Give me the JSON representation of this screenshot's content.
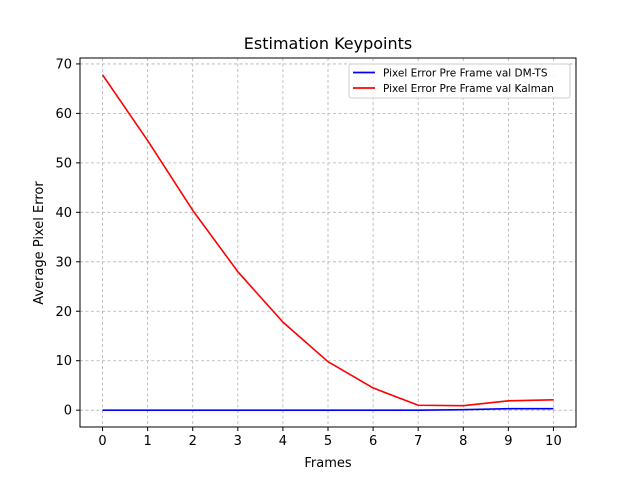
{
  "chart_data": {
    "type": "line",
    "title": "Estimation Keypoints",
    "xlabel": "Frames",
    "ylabel": "Average Pixel Error",
    "x": [
      0,
      1,
      2,
      3,
      4,
      5,
      6,
      7,
      8,
      9,
      10
    ],
    "xlim": [
      -0.5,
      10.5
    ],
    "ylim": [
      -3.4,
      71.2
    ],
    "xticks": [
      0,
      1,
      2,
      3,
      4,
      5,
      6,
      7,
      8,
      9,
      10
    ],
    "yticks": [
      0,
      10,
      20,
      30,
      40,
      50,
      60,
      70
    ],
    "grid": true,
    "legend_position": "top-right",
    "series": [
      {
        "name": "Pixel Error Pre Frame val DM-TS",
        "color": "#0000ff",
        "values": [
          0,
          0,
          0,
          0,
          0,
          0,
          0,
          0,
          0.1,
          0.3,
          0.3
        ]
      },
      {
        "name": "Pixel Error Pre Frame val Kalman",
        "color": "#ff0000",
        "values": [
          67.8,
          54.5,
          40.4,
          28.0,
          17.8,
          9.8,
          4.5,
          1.0,
          0.9,
          1.9,
          2.1
        ]
      }
    ]
  }
}
